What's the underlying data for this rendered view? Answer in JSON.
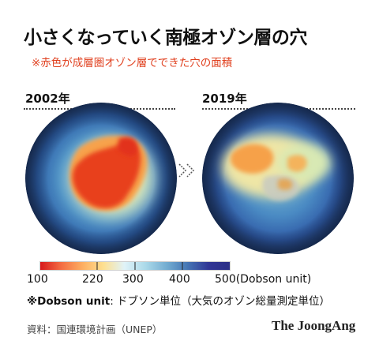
{
  "title": "小さくなっていく南極オゾン層の穴",
  "subtitle": "※赤色が成層圏オゾン層でできた穴の面積",
  "panels": [
    {
      "year": "2002年"
    },
    {
      "year": "2019年"
    }
  ],
  "colorbar": {
    "labels": [
      "100",
      "220",
      "300",
      "400",
      "500(Dobson unit)"
    ],
    "colors": [
      "#d7191c",
      "#f46d43",
      "#fdae61",
      "#fee090",
      "#e0f3f8",
      "#abd9e9",
      "#74add1",
      "#4575b4",
      "#313695",
      "#2b2f86"
    ]
  },
  "unit_note": {
    "term": "※Dobson unit",
    "text": ": ドブソン単位（大気のオゾン総量測定単位）"
  },
  "source": "資料：国連環境計画（UNEP）",
  "brand": "The JoongAng",
  "icons": {
    "arrow": "chevron-right-double-icon"
  }
}
